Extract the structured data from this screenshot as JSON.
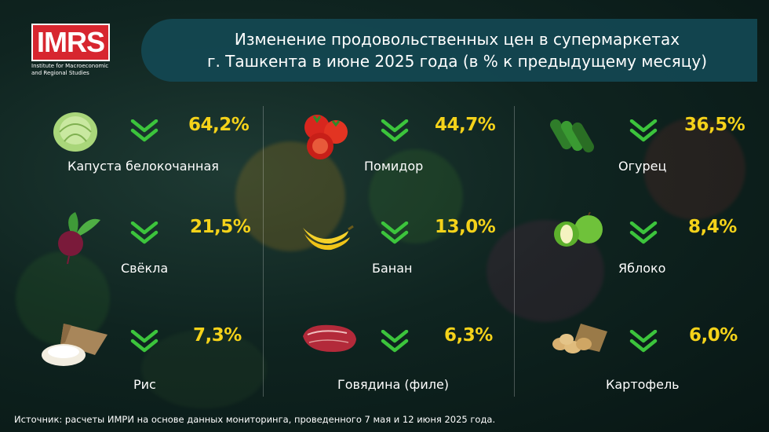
{
  "logo": {
    "text": "IMRS",
    "subtitle_line1": "Institute for Macroeconomic",
    "subtitle_line2": "and Regional Studies"
  },
  "title": {
    "line1": "Изменение продовольственных цен в супермаркетах",
    "line2": "г. Ташкента в июне 2025 года (в % к предыдущему месяцу)"
  },
  "colors": {
    "accent_yellow": "#f4d21a",
    "arrow_green": "#3cc43c",
    "logo_red": "#d7262f",
    "banner": "#144852"
  },
  "items": [
    {
      "name": "Капуста белокочанная",
      "change": "64,2%",
      "direction": "down",
      "icon": "cabbage-icon"
    },
    {
      "name": "Помидор",
      "change": "44,7%",
      "direction": "down",
      "icon": "tomato-icon"
    },
    {
      "name": "Огурец",
      "change": "36,5%",
      "direction": "down",
      "icon": "cucumber-icon"
    },
    {
      "name": "Свёкла",
      "change": "21,5%",
      "direction": "down",
      "icon": "beet-icon"
    },
    {
      "name": "Банан",
      "change": "13,0%",
      "direction": "down",
      "icon": "banana-icon"
    },
    {
      "name": "Яблоко",
      "change": "8,4%",
      "direction": "down",
      "icon": "apple-icon"
    },
    {
      "name": "Рис",
      "change": "7,3%",
      "direction": "down",
      "icon": "rice-icon"
    },
    {
      "name": "Говядина (филе)",
      "change": "6,3%",
      "direction": "down",
      "icon": "beef-icon"
    },
    {
      "name": "Картофель",
      "change": "6,0%",
      "direction": "down",
      "icon": "potato-icon"
    }
  ],
  "source": "Источник: расчеты ИМРИ на основе данных мониторинга, проведенного 7 мая и 12 июня 2025 года."
}
